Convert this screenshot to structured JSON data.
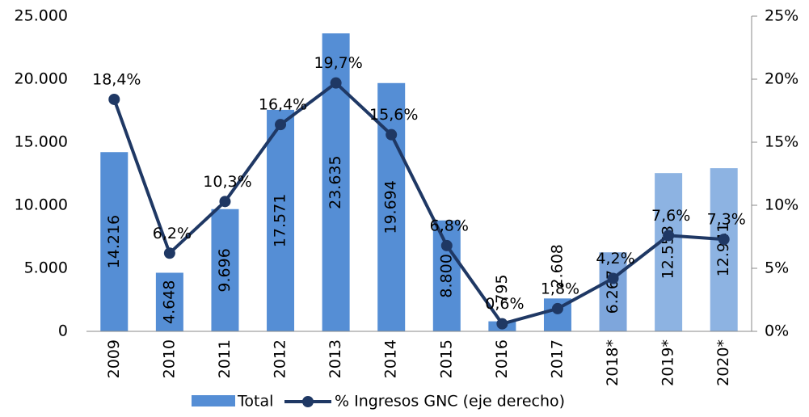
{
  "chart_data": {
    "type": "bar_line",
    "categories": [
      "2009",
      "2010",
      "2011",
      "2012",
      "2013",
      "2014",
      "2015",
      "2016",
      "2017",
      "2018*",
      "2019*",
      "2020*"
    ],
    "series": [
      {
        "name": "Total",
        "type": "bar",
        "color": "#558ed5",
        "colors": [
          "#558ed5",
          "#558ed5",
          "#558ed5",
          "#558ed5",
          "#558ed5",
          "#558ed5",
          "#558ed5",
          "#558ed5",
          "#558ed5",
          "#7ea6dc",
          "#8db3e2",
          "#8db3e2"
        ],
        "values": [
          14216,
          4648,
          9696,
          17571,
          23635,
          19694,
          8800,
          795,
          2608,
          6267,
          12553,
          12941
        ],
        "value_labels": [
          "14.216",
          "4.648",
          "9.696",
          "17.571",
          "23.635",
          "19.694",
          "8.800",
          "795",
          "2.608",
          "6.267",
          "12.553",
          "12.941"
        ]
      },
      {
        "name": "% Ingresos GNC (eje derecho)",
        "type": "line",
        "axis": "y2",
        "color": "#1f3864",
        "values": [
          18.4,
          6.2,
          10.3,
          16.4,
          19.7,
          15.6,
          6.8,
          0.6,
          1.8,
          4.2,
          7.6,
          7.3
        ],
        "value_labels": [
          "18,4%",
          "6,2%",
          "10,3%",
          "16,4%",
          "19,7%",
          "15,6%",
          "6,8%",
          "0,6%",
          "1,8%",
          "4,2%",
          "7,6%",
          "7,3%"
        ]
      }
    ],
    "ylim": [
      0,
      25000
    ],
    "yticks": [
      0,
      {
        "value": 5000,
        "label": "5.000"
      },
      {
        "value": 10000,
        "label": "10.000"
      },
      {
        "value": 15000,
        "label": "15.000"
      },
      {
        "value": 20000,
        "label": "20.000"
      },
      {
        "value": 25000,
        "label": "25.000"
      }
    ],
    "y2lim": [
      0,
      25
    ],
    "y2ticks": [
      {
        "value": 0,
        "label": "0%"
      },
      {
        "value": 5,
        "label": "5%"
      },
      {
        "value": 10,
        "label": "10%"
      },
      {
        "value": 15,
        "label": "15%"
      },
      {
        "value": 20,
        "label": "20%"
      },
      {
        "value": 25,
        "label": "25%"
      }
    ],
    "legend": "bottom"
  }
}
